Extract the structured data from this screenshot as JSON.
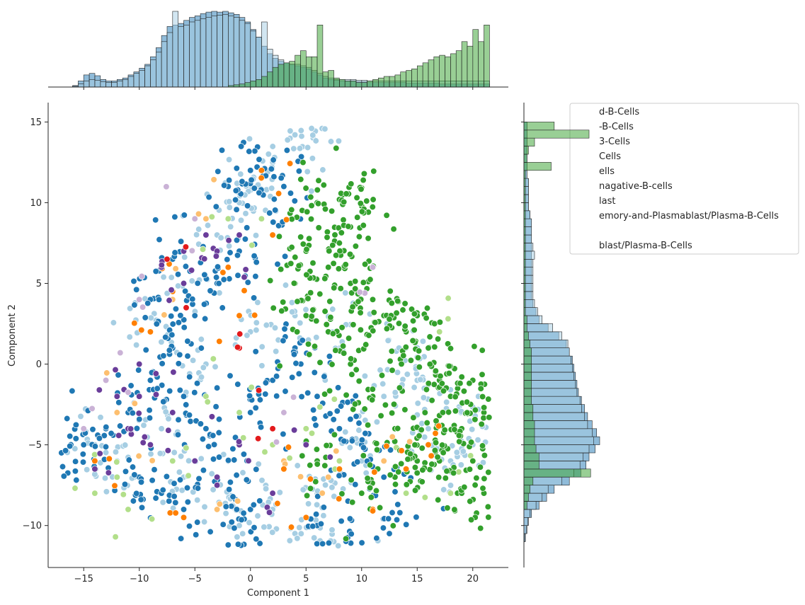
{
  "chart_data": {
    "type": "scatter",
    "title": "",
    "xlabel": "Component 1",
    "ylabel": "Component 2",
    "xlim": [
      -18.2,
      23.2
    ],
    "ylim": [
      -12.6,
      16.2
    ],
    "xticks": [
      -15,
      -10,
      -5,
      0,
      5,
      10,
      15,
      20
    ],
    "yticks": [
      -10,
      -5,
      0,
      5,
      10,
      15
    ],
    "xtick_labels": [
      "−15",
      "−10",
      "−5",
      "0",
      "5",
      "10",
      "15",
      "20"
    ],
    "ytick_labels": [
      "−10",
      "−5",
      "0",
      "5",
      "10",
      "15"
    ],
    "legend": {
      "placement": "upper-right (partially hidden behind marginal histogram)",
      "entries": [
        "d-B-Cells",
        "-B-Cells",
        "3-Cells",
        "Cells",
        "ells",
        "nagative-B-cells",
        "last",
        "emory-and-Plasmablast/Plasma-B-Cells",
        "",
        "blast/Plasma-B-Cells"
      ]
    },
    "series": [
      {
        "color": "#a6cee3",
        "points": [
          [
            4,
            14.2
          ],
          [
            5.5,
            14.6
          ],
          [
            2,
            12.5
          ],
          [
            0,
            11
          ],
          [
            -1,
            10
          ],
          [
            -3,
            8
          ],
          [
            -6,
            5
          ],
          [
            -10,
            2
          ],
          [
            -14,
            -5
          ],
          [
            -12,
            -6
          ],
          [
            -8,
            -4
          ],
          [
            -4,
            0
          ],
          [
            0,
            2
          ],
          [
            4,
            3
          ],
          [
            8,
            1
          ],
          [
            12,
            -2
          ],
          [
            16,
            -4
          ],
          [
            18,
            -6
          ],
          [
            20,
            -5
          ],
          [
            14,
            1
          ],
          [
            10,
            -6
          ],
          [
            6,
            -8
          ],
          [
            2,
            -9
          ],
          [
            -2,
            -8
          ],
          [
            -6,
            -7
          ],
          [
            4,
            -10.5
          ],
          [
            7.5,
            -11
          ],
          [
            -1,
            -10
          ],
          [
            15,
            -1
          ],
          [
            19,
            -3
          ]
        ]
      },
      {
        "color": "#1f78b4",
        "points": [
          [
            -15,
            -5
          ],
          [
            -13,
            -4
          ],
          [
            -11,
            -3
          ],
          [
            -9,
            -1
          ],
          [
            -7,
            1
          ],
          [
            -5,
            3
          ],
          [
            -3,
            5
          ],
          [
            -1,
            7
          ],
          [
            1,
            9
          ],
          [
            -2,
            11
          ],
          [
            0,
            12
          ],
          [
            3,
            11
          ],
          [
            -6,
            -2
          ],
          [
            -4,
            -4
          ],
          [
            -2,
            -6
          ],
          [
            0,
            -3
          ],
          [
            2,
            -1
          ],
          [
            4,
            1
          ],
          [
            6,
            -2
          ],
          [
            8,
            -4
          ],
          [
            10,
            -5
          ],
          [
            12,
            -7
          ],
          [
            -10,
            -7
          ],
          [
            -8,
            -8
          ],
          [
            -6,
            -9
          ],
          [
            0,
            -9
          ],
          [
            6,
            -10
          ],
          [
            9,
            -10.5
          ],
          [
            12.5,
            -10.5
          ],
          [
            -2,
            -11.2
          ],
          [
            -17,
            -5.5
          ],
          [
            -9,
            4
          ],
          [
            -7,
            6.5
          ]
        ]
      },
      {
        "color": "#b2df8a",
        "points": [
          [
            -11,
            -9
          ],
          [
            -14,
            -8
          ],
          [
            -7,
            -6
          ],
          [
            -4,
            -2
          ],
          [
            -1,
            -3
          ],
          [
            2,
            -5
          ],
          [
            5,
            -4
          ],
          [
            1,
            9
          ],
          [
            -2,
            9
          ],
          [
            14,
            -8
          ],
          [
            18,
            -8
          ],
          [
            17,
            2
          ],
          [
            8,
            -6
          ],
          [
            -12,
            -7
          ]
        ]
      },
      {
        "color": "#33a02c",
        "points": [
          [
            6,
            10
          ],
          [
            8,
            10.2
          ],
          [
            10,
            9.8
          ],
          [
            9,
            8.5
          ],
          [
            7,
            6
          ],
          [
            9,
            5
          ],
          [
            11,
            4
          ],
          [
            12,
            3
          ],
          [
            14,
            2
          ],
          [
            15,
            3
          ],
          [
            16,
            1
          ],
          [
            17,
            -1
          ],
          [
            18,
            -2
          ],
          [
            19,
            -4
          ],
          [
            20,
            -6
          ],
          [
            21,
            -8
          ],
          [
            19,
            -8
          ],
          [
            17,
            -6
          ],
          [
            15,
            -6
          ],
          [
            13,
            -4
          ],
          [
            11,
            -2
          ],
          [
            9,
            0
          ],
          [
            7,
            2
          ],
          [
            5,
            3
          ],
          [
            6,
            -6
          ],
          [
            10,
            -8
          ],
          [
            13,
            -7
          ],
          [
            16,
            -5
          ],
          [
            20,
            -1
          ],
          [
            21,
            -3
          ],
          [
            4,
            5
          ],
          [
            5,
            7
          ],
          [
            8,
            7.5
          ]
        ]
      },
      {
        "color": "#fdbf6f",
        "points": [
          [
            -7,
            4
          ],
          [
            -12,
            -3
          ],
          [
            -3,
            -9
          ],
          [
            3,
            -6
          ],
          [
            7,
            -7
          ],
          [
            -9,
            -5
          ],
          [
            -4,
            9
          ],
          [
            12,
            -6
          ]
        ]
      },
      {
        "color": "#ff7f00",
        "points": [
          [
            -7,
            4.5
          ],
          [
            -9,
            2
          ],
          [
            -6,
            -9.5
          ],
          [
            -14,
            -6
          ],
          [
            3,
            -6.5
          ],
          [
            5,
            -9.5
          ],
          [
            8,
            -6.5
          ],
          [
            11,
            -9
          ],
          [
            14,
            -6.5
          ],
          [
            -2,
            6
          ],
          [
            1,
            12
          ],
          [
            2,
            8
          ],
          [
            -1,
            3
          ],
          [
            16,
            -5
          ]
        ]
      },
      {
        "color": "#6a3d9a",
        "points": [
          [
            -8,
            6
          ],
          [
            -6,
            7
          ],
          [
            -4,
            8
          ],
          [
            -10,
            -2
          ],
          [
            -11,
            -4
          ],
          [
            -9,
            -5
          ],
          [
            -7,
            -3
          ],
          [
            -5,
            -6
          ],
          [
            -3,
            -7
          ],
          [
            -1,
            -5
          ],
          [
            -12,
            -2
          ],
          [
            -10,
            0
          ],
          [
            -6,
            5
          ],
          [
            -3,
            7
          ],
          [
            -1,
            8
          ],
          [
            2,
            -8
          ],
          [
            5,
            -5
          ],
          [
            -14,
            -6.5
          ]
        ]
      },
      {
        "color": "#cab2d6",
        "points": [
          [
            -13,
            -1
          ],
          [
            -10,
            4
          ],
          [
            -5,
            9
          ],
          [
            3,
            -3
          ],
          [
            11,
            6
          ],
          [
            -15,
            -4
          ]
        ]
      },
      {
        "color": "#e31a1c",
        "points": [
          [
            -7.5,
            6.5
          ],
          [
            -1,
            1
          ],
          [
            2,
            -4
          ]
        ]
      }
    ],
    "marginal_x": {
      "bins": [
        -16,
        -15.5,
        -15,
        -14.5,
        -14,
        -13.5,
        -13,
        -12.5,
        -12,
        -11.5,
        -11,
        -10.5,
        -10,
        -9.5,
        -9,
        -8.5,
        -8,
        -7.5,
        -7,
        -6.5,
        -6,
        -5.5,
        -5,
        -4.5,
        -4,
        -3.5,
        -3,
        -2.5,
        -2,
        -1.5,
        -1,
        -0.5,
        0,
        0.5,
        1,
        1.5,
        2,
        2.5,
        3,
        3.5,
        4,
        4.5,
        5,
        5.5,
        6,
        6.5,
        7,
        7.5,
        8,
        8.5,
        9,
        9.5,
        10,
        10.5,
        11,
        11.5,
        12,
        12.5,
        13,
        13.5,
        14,
        14.5,
        15,
        15.5,
        16,
        16.5,
        17,
        17.5,
        18,
        18.5,
        19,
        19.5,
        20,
        20.5,
        21
      ],
      "series": [
        {
          "color": "#1f78b4",
          "values": [
            2,
            8,
            16,
            18,
            15,
            10,
            8,
            8,
            10,
            12,
            16,
            20,
            25,
            30,
            40,
            52,
            68,
            80,
            82,
            84,
            88,
            92,
            94,
            97,
            99,
            100,
            99,
            100,
            98,
            96,
            92,
            86,
            76,
            66,
            54,
            44,
            38,
            34,
            32,
            30,
            28,
            26,
            24,
            20,
            16,
            12,
            10,
            9,
            8,
            8,
            8,
            7,
            7,
            6,
            6,
            6,
            6,
            6,
            6,
            6,
            5,
            5,
            5,
            5,
            5,
            5,
            4,
            4,
            4,
            4,
            4,
            4,
            4,
            4,
            4
          ]
        },
        {
          "color": "#a6cee3",
          "values": [
            1,
            4,
            8,
            10,
            9,
            7,
            6,
            6,
            8,
            10,
            14,
            18,
            22,
            28,
            36,
            46,
            60,
            72,
            100,
            80,
            82,
            86,
            88,
            90,
            92,
            94,
            95,
            96,
            94,
            92,
            88,
            84,
            74,
            66,
            86,
            50,
            42,
            36,
            32,
            30,
            30,
            28,
            26,
            22,
            18,
            14,
            12,
            10,
            10,
            10,
            10,
            9,
            9,
            8,
            8,
            8,
            8,
            8,
            8,
            8,
            8,
            8,
            8,
            8,
            8,
            8,
            8,
            8,
            8,
            8,
            8,
            8,
            8,
            8,
            8
          ]
        },
        {
          "color": "#33a02c",
          "values": [
            0,
            0,
            0,
            0,
            0,
            0,
            0,
            0,
            0,
            0,
            0,
            0,
            0,
            0,
            0,
            0,
            0,
            0,
            0,
            0,
            0,
            0,
            0,
            0,
            0,
            0,
            0,
            0,
            2,
            3,
            4,
            6,
            8,
            10,
            14,
            20,
            26,
            30,
            32,
            34,
            42,
            48,
            40,
            40,
            82,
            20,
            22,
            12,
            10,
            8,
            8,
            6,
            6,
            8,
            10,
            12,
            14,
            14,
            16,
            20,
            22,
            24,
            28,
            32,
            36,
            40,
            42,
            40,
            44,
            48,
            60,
            54,
            76,
            60,
            82
          ]
        }
      ]
    },
    "marginal_y": {
      "bins": [
        -11,
        -10.5,
        -10,
        -9.5,
        -9,
        -8.5,
        -8,
        -7.5,
        -7,
        -6.5,
        -6,
        -5.5,
        -5,
        -4.5,
        -4,
        -3.5,
        -3,
        -2.5,
        -2,
        -1.5,
        -1,
        -0.5,
        0,
        0.5,
        1,
        1.5,
        2,
        2.5,
        3,
        3.5,
        4,
        4.5,
        5,
        5.5,
        6,
        6.5,
        7,
        7.5,
        8,
        8.5,
        9,
        9.5,
        10,
        10.5,
        11,
        11.5,
        12,
        12.5,
        13,
        13.5,
        14,
        14.5
      ],
      "series": [
        {
          "color": "#1f78b4",
          "values": [
            2,
            4,
            6,
            10,
            20,
            30,
            40,
            60,
            75,
            82,
            86,
            94,
            100,
            96,
            90,
            84,
            80,
            76,
            72,
            70,
            68,
            66,
            64,
            60,
            56,
            46,
            32,
            20,
            16,
            12,
            10,
            10,
            10,
            10,
            10,
            10,
            10,
            10,
            10,
            10,
            8,
            6,
            6,
            6,
            6,
            4,
            4,
            4,
            4,
            4,
            4,
            4
          ]
        },
        {
          "color": "#a6cee3",
          "values": [
            1,
            3,
            5,
            8,
            16,
            24,
            32,
            50,
            66,
            74,
            78,
            86,
            92,
            90,
            84,
            80,
            76,
            74,
            70,
            68,
            66,
            64,
            62,
            60,
            58,
            50,
            38,
            24,
            18,
            14,
            12,
            12,
            12,
            12,
            12,
            14,
            12,
            10,
            10,
            10,
            8,
            6,
            6,
            6,
            6,
            4,
            4,
            4,
            4,
            4,
            4,
            4
          ]
        },
        {
          "color": "#33a02c",
          "values": [
            0,
            0,
            0,
            0,
            4,
            6,
            8,
            12,
            88,
            20,
            20,
            16,
            14,
            14,
            14,
            12,
            12,
            10,
            10,
            10,
            10,
            10,
            10,
            10,
            8,
            6,
            4,
            4,
            2,
            2,
            2,
            2,
            2,
            2,
            2,
            2,
            2,
            2,
            2,
            2,
            2,
            2,
            2,
            2,
            2,
            2,
            36,
            4,
            6,
            14,
            86,
            40
          ]
        }
      ]
    }
  }
}
